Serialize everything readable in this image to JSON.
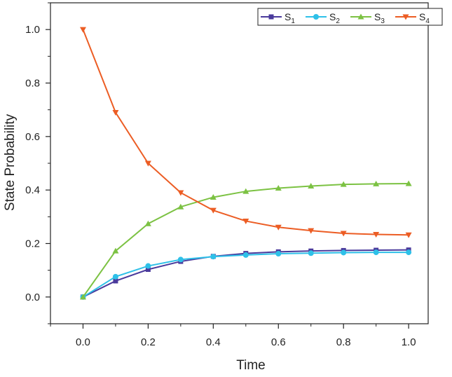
{
  "chart_data": {
    "type": "line",
    "xlabel": "Time",
    "ylabel": "State Probability",
    "xlim": [
      -0.1,
      1.06
    ],
    "ylim": [
      -0.1,
      1.1
    ],
    "xticks": [
      "0.0",
      "0.2",
      "0.4",
      "0.6",
      "0.8",
      "1.0"
    ],
    "yticks": [
      "0.0",
      "0.2",
      "0.4",
      "0.6",
      "0.8",
      "1.0"
    ],
    "x": [
      0.0,
      0.1,
      0.2,
      0.3,
      0.4,
      0.5,
      0.6,
      0.7,
      0.8,
      0.9,
      1.0
    ],
    "legend_position": "top-right",
    "series": [
      {
        "name": "S",
        "sub": "1",
        "color": "#4a3a9c",
        "marker": "square",
        "values": [
          0.0,
          0.06,
          0.103,
          0.133,
          0.152,
          0.163,
          0.169,
          0.172,
          0.174,
          0.175,
          0.176
        ]
      },
      {
        "name": "S",
        "sub": "2",
        "color": "#2ec0e8",
        "marker": "circle",
        "values": [
          0.0,
          0.076,
          0.116,
          0.14,
          0.151,
          0.157,
          0.162,
          0.164,
          0.166,
          0.167,
          0.167
        ]
      },
      {
        "name": "S",
        "sub": "3",
        "color": "#7cc243",
        "marker": "triangle-up",
        "values": [
          0.0,
          0.172,
          0.274,
          0.337,
          0.373,
          0.395,
          0.407,
          0.415,
          0.421,
          0.423,
          0.424
        ]
      },
      {
        "name": "S",
        "sub": "4",
        "color": "#ec5d24",
        "marker": "triangle-down",
        "values": [
          1.0,
          0.69,
          0.5,
          0.39,
          0.324,
          0.284,
          0.261,
          0.248,
          0.238,
          0.234,
          0.232
        ]
      }
    ]
  }
}
